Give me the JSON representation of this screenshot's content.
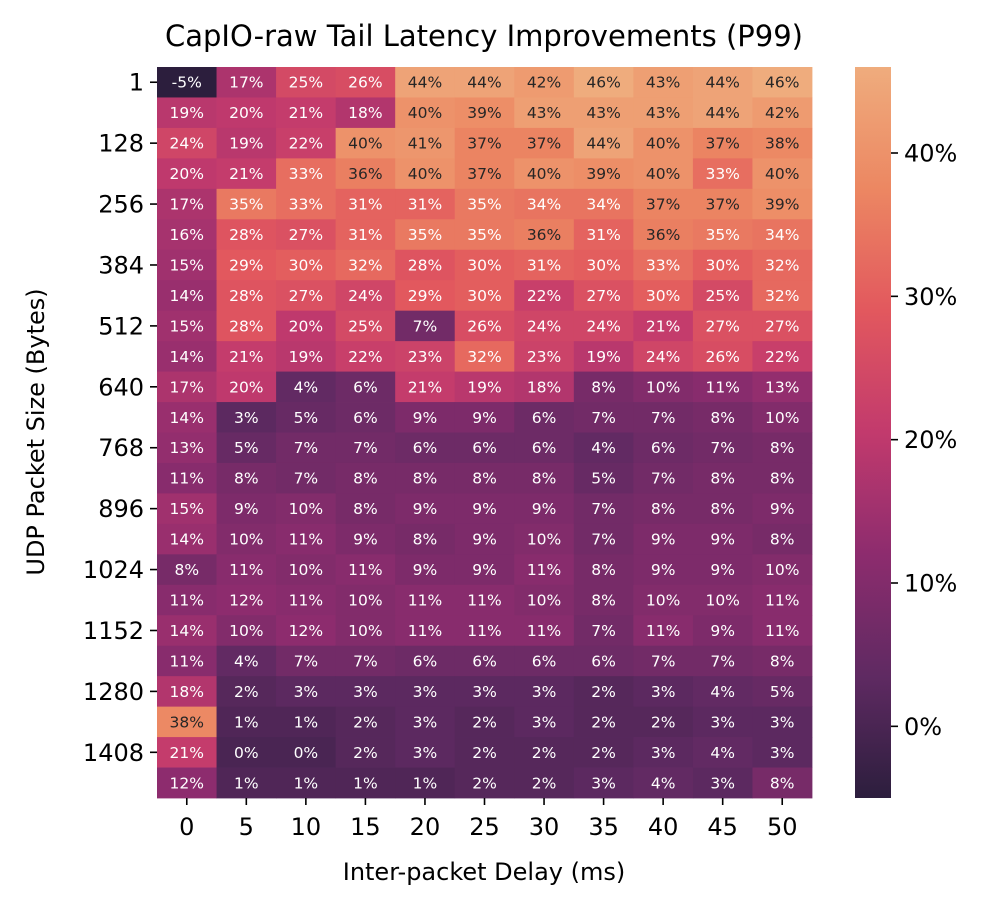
{
  "chart_data": {
    "type": "heatmap",
    "title": "CapIO-raw Tail Latency Improvements (P99)",
    "xlabel": "Inter-packet Delay (ms)",
    "ylabel": "UDP Packet Size (Bytes)",
    "x_categories": [
      "0",
      "5",
      "10",
      "15",
      "20",
      "25",
      "30",
      "35",
      "40",
      "45",
      "50"
    ],
    "y_tick_labels": [
      "1",
      "128",
      "256",
      "384",
      "512",
      "640",
      "768",
      "896",
      "1024",
      "1152",
      "1280",
      "1408"
    ],
    "values": [
      [
        -5,
        17,
        25,
        26,
        44,
        44,
        42,
        46,
        43,
        44,
        46
      ],
      [
        19,
        20,
        21,
        18,
        40,
        39,
        43,
        43,
        43,
        44,
        42
      ],
      [
        24,
        19,
        22,
        40,
        41,
        37,
        37,
        44,
        40,
        37,
        38
      ],
      [
        20,
        21,
        33,
        36,
        40,
        37,
        40,
        39,
        40,
        33,
        40
      ],
      [
        17,
        35,
        33,
        31,
        31,
        35,
        34,
        34,
        37,
        37,
        39
      ],
      [
        16,
        28,
        27,
        31,
        35,
        35,
        36,
        31,
        36,
        35,
        34
      ],
      [
        15,
        29,
        30,
        32,
        28,
        30,
        31,
        30,
        33,
        30,
        32
      ],
      [
        14,
        28,
        27,
        24,
        29,
        30,
        22,
        27,
        30,
        25,
        32
      ],
      [
        15,
        28,
        20,
        25,
        7,
        26,
        24,
        24,
        21,
        27,
        27
      ],
      [
        14,
        21,
        19,
        22,
        23,
        32,
        23,
        19,
        24,
        26,
        22
      ],
      [
        17,
        20,
        4,
        6,
        21,
        19,
        18,
        8,
        10,
        11,
        13
      ],
      [
        14,
        3,
        5,
        6,
        9,
        9,
        6,
        7,
        7,
        8,
        10
      ],
      [
        13,
        5,
        7,
        7,
        6,
        6,
        6,
        4,
        6,
        7,
        8
      ],
      [
        11,
        8,
        7,
        8,
        8,
        8,
        8,
        5,
        7,
        8,
        8
      ],
      [
        15,
        9,
        10,
        8,
        9,
        9,
        9,
        7,
        8,
        8,
        9
      ],
      [
        14,
        10,
        11,
        9,
        8,
        9,
        10,
        7,
        9,
        9,
        8
      ],
      [
        8,
        11,
        10,
        11,
        9,
        9,
        11,
        8,
        9,
        9,
        10
      ],
      [
        11,
        12,
        11,
        10,
        11,
        11,
        10,
        8,
        10,
        10,
        11
      ],
      [
        14,
        10,
        12,
        10,
        11,
        11,
        11,
        7,
        11,
        9,
        11
      ],
      [
        11,
        4,
        7,
        7,
        6,
        6,
        6,
        6,
        7,
        7,
        8
      ],
      [
        18,
        2,
        3,
        3,
        3,
        3,
        3,
        2,
        3,
        4,
        5
      ],
      [
        38,
        1,
        1,
        2,
        3,
        2,
        3,
        2,
        2,
        3,
        3
      ],
      [
        21,
        0,
        0,
        2,
        3,
        2,
        2,
        2,
        3,
        4,
        3
      ],
      [
        12,
        1,
        1,
        1,
        1,
        2,
        2,
        3,
        4,
        3,
        8
      ]
    ],
    "value_suffix": "%",
    "colorbar": {
      "range": [
        -5,
        46
      ],
      "ticks": [
        0,
        10,
        20,
        30,
        40
      ],
      "tick_labels": [
        "0%",
        "10%",
        "20%",
        "30%",
        "40%"
      ]
    },
    "colormap": "flare_r",
    "colormap_stops": [
      "#2c1e3d",
      "#5f2a62",
      "#8d2c6e",
      "#c23a6d",
      "#e2585e",
      "#ec8762",
      "#efac7d"
    ]
  }
}
